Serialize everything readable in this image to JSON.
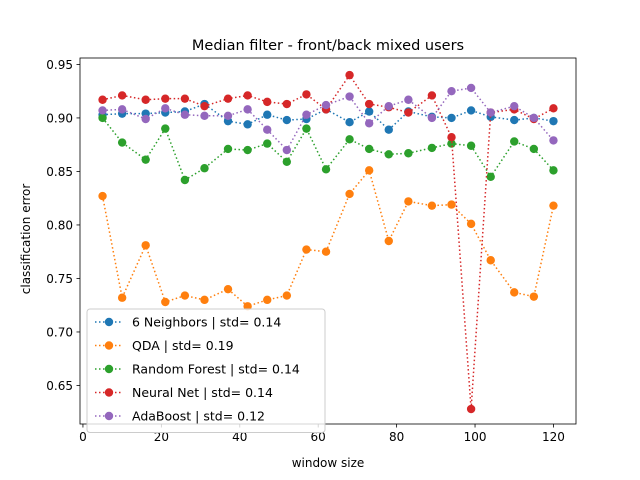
{
  "chart_data": {
    "type": "line",
    "title": "Median filter - front/back mixed users",
    "xlabel": "window size",
    "ylabel": "classification error",
    "xlim": [
      -0.75,
      125.75
    ],
    "ylim": [
      0.614,
      0.956
    ],
    "xticks": [
      0,
      20,
      40,
      60,
      80,
      100,
      120
    ],
    "xtick_labels": [
      "0",
      "20",
      "40",
      "60",
      "80",
      "100",
      "120"
    ],
    "yticks": [
      0.65,
      0.7,
      0.75,
      0.8,
      0.85,
      0.9,
      0.95
    ],
    "ytick_labels": [
      "0.65",
      "0.70",
      "0.75",
      "0.80",
      "0.85",
      "0.90",
      "0.95"
    ],
    "grid": false,
    "legend_position": "lower left",
    "line_style": "dotted",
    "marker": "circle",
    "x": [
      5,
      10,
      16,
      21,
      26,
      31,
      37,
      42,
      47,
      52,
      57,
      62,
      68,
      73,
      78,
      83,
      89,
      94,
      99,
      104,
      110,
      115,
      120
    ],
    "series": [
      {
        "name": "6 Neighbors | std= 0.14",
        "color": "#1f77b4",
        "values": [
          0.903,
          0.904,
          0.904,
          0.905,
          0.906,
          0.913,
          0.897,
          0.894,
          0.903,
          0.898,
          0.899,
          0.908,
          0.896,
          0.906,
          0.889,
          0.906,
          0.901,
          0.9,
          0.907,
          0.901,
          0.898,
          0.9,
          0.897
        ]
      },
      {
        "name": "QDA | std= 0.19",
        "color": "#ff7f0e",
        "values": [
          0.827,
          0.732,
          0.781,
          0.728,
          0.734,
          0.73,
          0.74,
          0.724,
          0.73,
          0.734,
          0.777,
          0.775,
          0.829,
          0.851,
          0.785,
          0.822,
          0.818,
          0.819,
          0.801,
          0.767,
          0.737,
          0.733,
          0.818
        ]
      },
      {
        "name": "Random Forest | std= 0.14",
        "color": "#2ca02c",
        "values": [
          0.9,
          0.877,
          0.861,
          0.89,
          0.842,
          0.853,
          0.871,
          0.87,
          0.876,
          0.859,
          0.89,
          0.852,
          0.88,
          0.871,
          0.866,
          0.867,
          0.872,
          0.876,
          0.874,
          0.845,
          0.878,
          0.871,
          0.851
        ]
      },
      {
        "name": "Neural Net | std= 0.14",
        "color": "#d62728",
        "values": [
          0.917,
          0.921,
          0.917,
          0.918,
          0.918,
          0.911,
          0.918,
          0.921,
          0.915,
          0.913,
          0.922,
          0.908,
          0.94,
          0.913,
          0.91,
          0.905,
          0.921,
          0.882,
          0.628,
          0.905,
          0.908,
          0.899,
          0.909
        ]
      },
      {
        "name": "AdaBoost | std= 0.12",
        "color": "#9467bd",
        "values": [
          0.907,
          0.908,
          0.899,
          0.909,
          0.903,
          0.902,
          0.902,
          0.908,
          0.889,
          0.87,
          0.903,
          0.912,
          0.92,
          0.895,
          0.911,
          0.917,
          0.9,
          0.925,
          0.928,
          0.905,
          0.911,
          0.9,
          0.879
        ]
      }
    ]
  }
}
